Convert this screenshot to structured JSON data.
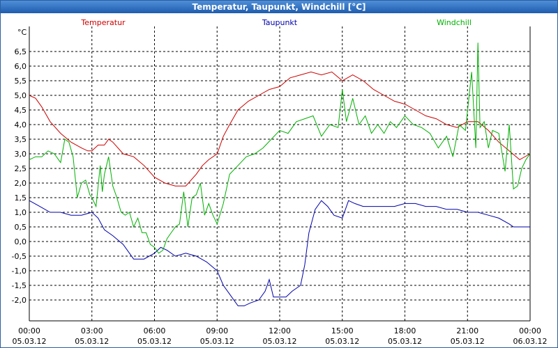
{
  "window": {
    "title": "Temperatur, Taupunkt, Windchill [°C]"
  },
  "colors": {
    "temperature": "#cc0000",
    "dewpoint": "#0000aa",
    "windchill": "#00b000",
    "grid": "#000000"
  },
  "chart_data": {
    "type": "line",
    "title": "Temperatur, Taupunkt, Windchill [°C]",
    "ylabel": "°C",
    "ylim": [
      -2.5,
      7.0
    ],
    "yticks": [
      -2.0,
      -1.5,
      -1.0,
      -0.5,
      0.0,
      0.5,
      1.0,
      1.5,
      2.0,
      2.5,
      3.0,
      3.5,
      4.0,
      4.5,
      5.0,
      5.5,
      6.0,
      6.5
    ],
    "ytick_labels": [
      "-2,0",
      "-1,5",
      "-1,0",
      "-0,5",
      "0,0",
      "0,5",
      "1,0",
      "1,5",
      "2,0",
      "2,5",
      "3,0",
      "3,5",
      "4,0",
      "4,5",
      "5,0",
      "5,5",
      "6,0",
      "6,5"
    ],
    "xlim": [
      0,
      24
    ],
    "xticks": [
      {
        "hour": 0,
        "time": "00:00",
        "date": "05.03.12"
      },
      {
        "hour": 3,
        "time": "03:00",
        "date": "05.03.12"
      },
      {
        "hour": 6,
        "time": "06:00",
        "date": "05.03.12"
      },
      {
        "hour": 9,
        "time": "09:00",
        "date": "05.03.12"
      },
      {
        "hour": 12,
        "time": "12:00",
        "date": "05.03.12"
      },
      {
        "hour": 15,
        "time": "15:00",
        "date": "05.03.12"
      },
      {
        "hour": 18,
        "time": "18:00",
        "date": "05.03.12"
      },
      {
        "hour": 21,
        "time": "21:00",
        "date": "05.03.12"
      },
      {
        "hour": 24,
        "time": "00:00",
        "date": "06.03.12"
      }
    ],
    "series": [
      {
        "name": "Temperatur",
        "color": "#cc0000",
        "x": [
          0,
          0.3,
          0.6,
          1,
          1.5,
          2,
          2.5,
          2.8,
          3,
          3.3,
          3.6,
          3.8,
          4,
          4.5,
          5,
          5.5,
          6,
          6.5,
          7,
          7.5,
          8,
          8.3,
          8.6,
          9,
          9.3,
          9.6,
          10,
          10.5,
          11,
          11.5,
          12,
          12.5,
          13,
          13.5,
          14,
          14.5,
          15,
          15.5,
          16,
          16.5,
          17,
          17.5,
          18,
          18.5,
          19,
          19.5,
          20,
          20.5,
          21,
          21.5,
          22,
          22.5,
          23,
          23.5,
          24
        ],
        "values": [
          5.0,
          4.9,
          4.6,
          4.1,
          3.7,
          3.4,
          3.2,
          3.1,
          3.1,
          3.3,
          3.3,
          3.5,
          3.4,
          3.0,
          2.9,
          2.6,
          2.2,
          2.0,
          1.9,
          1.9,
          2.3,
          2.6,
          2.8,
          3.0,
          3.6,
          4.0,
          4.5,
          4.8,
          5.0,
          5.2,
          5.3,
          5.6,
          5.7,
          5.8,
          5.7,
          5.8,
          5.5,
          5.7,
          5.5,
          5.2,
          5.0,
          4.8,
          4.7,
          4.5,
          4.3,
          4.2,
          4.0,
          3.9,
          4.1,
          4.1,
          3.8,
          3.4,
          3.1,
          2.8,
          3.0
        ]
      },
      {
        "name": "Taupunkt",
        "color": "#0000aa",
        "x": [
          0,
          0.5,
          1,
          1.5,
          2,
          2.5,
          3,
          3.3,
          3.6,
          4,
          4.5,
          5,
          5.5,
          6,
          6.3,
          6.6,
          7,
          7.5,
          8,
          8.5,
          9,
          9.3,
          9.6,
          10,
          10.3,
          10.6,
          11,
          11.3,
          11.5,
          11.7,
          12,
          12.3,
          12.6,
          13,
          13.2,
          13.4,
          13.7,
          14,
          14.3,
          14.6,
          15,
          15.3,
          15.6,
          16,
          16.5,
          17,
          17.5,
          18,
          18.5,
          19,
          19.5,
          20,
          20.5,
          21,
          21.5,
          22,
          22.5,
          23,
          23.2,
          23.5,
          24
        ],
        "values": [
          1.4,
          1.2,
          1.0,
          1.0,
          0.9,
          0.9,
          1.0,
          0.8,
          0.4,
          0.2,
          -0.1,
          -0.6,
          -0.6,
          -0.4,
          -0.2,
          -0.3,
          -0.5,
          -0.4,
          -0.5,
          -0.7,
          -1.0,
          -1.5,
          -1.8,
          -2.2,
          -2.2,
          -2.1,
          -2.0,
          -1.7,
          -1.3,
          -1.9,
          -1.9,
          -1.9,
          -1.7,
          -1.5,
          -0.8,
          0.3,
          1.1,
          1.4,
          1.2,
          0.9,
          0.8,
          1.4,
          1.3,
          1.2,
          1.2,
          1.2,
          1.2,
          1.3,
          1.3,
          1.2,
          1.2,
          1.1,
          1.1,
          1.0,
          1.0,
          0.9,
          0.8,
          0.6,
          0.5,
          0.5,
          0.5
        ]
      },
      {
        "name": "Windchill",
        "color": "#00b000",
        "x": [
          0,
          0.3,
          0.6,
          0.9,
          1.2,
          1.5,
          1.7,
          1.9,
          2.1,
          2.3,
          2.5,
          2.7,
          2.9,
          3.0,
          3.2,
          3.4,
          3.5,
          3.6,
          3.8,
          4.0,
          4.2,
          4.4,
          4.6,
          4.8,
          5.0,
          5.2,
          5.4,
          5.6,
          5.8,
          6.0,
          6.2,
          6.4,
          6.6,
          6.8,
          7.0,
          7.2,
          7.4,
          7.6,
          7.8,
          8.0,
          8.2,
          8.4,
          8.6,
          8.8,
          9.0,
          9.3,
          9.6,
          10.0,
          10.4,
          10.8,
          11.2,
          11.6,
          12.0,
          12.4,
          12.8,
          13.2,
          13.6,
          14.0,
          14.4,
          14.8,
          15.0,
          15.2,
          15.5,
          15.8,
          16.1,
          16.4,
          16.7,
          17.0,
          17.3,
          17.6,
          18.0,
          18.4,
          18.8,
          19.2,
          19.6,
          20.0,
          20.3,
          20.6,
          20.9,
          21.2,
          21.4,
          21.5,
          21.6,
          21.8,
          22.0,
          22.2,
          22.5,
          22.8,
          23.0,
          23.2,
          23.4,
          23.6,
          23.8,
          24.0
        ],
        "values": [
          2.8,
          2.9,
          2.9,
          3.1,
          3.0,
          2.7,
          3.5,
          3.4,
          2.9,
          1.5,
          2.0,
          2.1,
          1.6,
          1.5,
          1.2,
          2.6,
          1.7,
          2.3,
          2.9,
          1.9,
          1.5,
          1.0,
          0.9,
          1.0,
          0.5,
          0.8,
          0.3,
          0.3,
          -0.1,
          -0.2,
          -0.4,
          -0.3,
          0.1,
          0.3,
          0.5,
          0.6,
          1.7,
          0.5,
          1.5,
          1.6,
          2.0,
          0.9,
          1.3,
          0.9,
          0.6,
          1.3,
          2.3,
          2.6,
          2.9,
          3.0,
          3.2,
          3.5,
          3.8,
          3.7,
          4.1,
          4.2,
          4.3,
          3.6,
          4.0,
          3.9,
          5.2,
          4.1,
          4.9,
          4.0,
          4.3,
          3.7,
          4.0,
          3.7,
          4.1,
          3.9,
          4.3,
          4.0,
          3.9,
          3.7,
          3.2,
          3.6,
          2.9,
          4.0,
          3.8,
          5.8,
          3.2,
          6.8,
          3.9,
          4.1,
          3.2,
          3.8,
          3.7,
          2.4,
          4.0,
          1.8,
          1.9,
          2.5,
          2.8,
          3.0
        ]
      }
    ]
  }
}
